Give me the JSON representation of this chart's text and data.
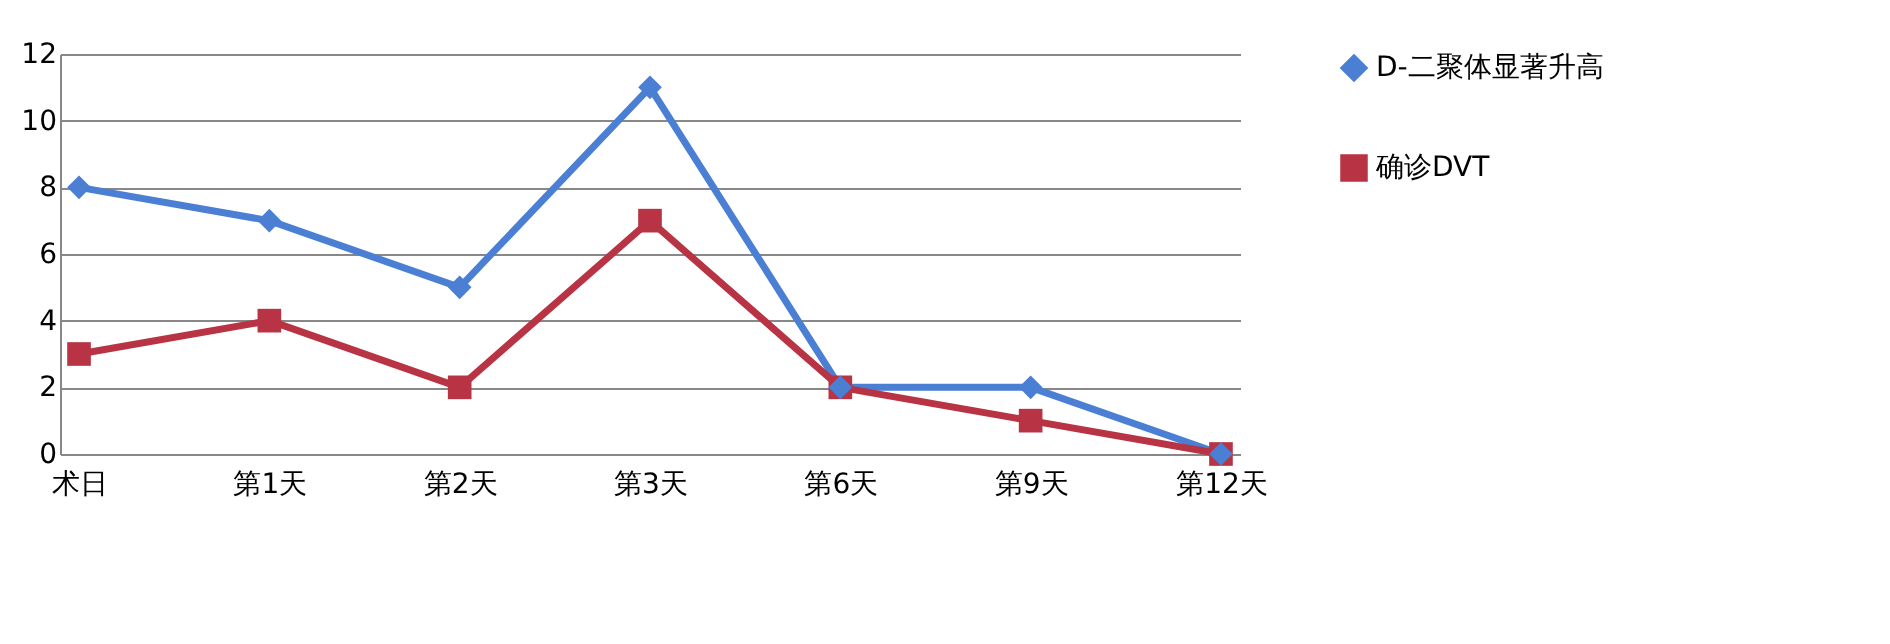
{
  "chart_data": {
    "type": "line",
    "categories": [
      "术日",
      "第1天",
      "第2天",
      "第3天",
      "第6天",
      "第9天",
      "第12天"
    ],
    "series": [
      {
        "name": "D-二聚体显著升高",
        "color": "#4a7fd4",
        "marker": "diamond",
        "values": [
          8,
          7,
          5,
          11,
          2,
          2,
          0
        ]
      },
      {
        "name": "确诊DVT",
        "color": "#b83444",
        "marker": "square",
        "values": [
          3,
          4,
          2,
          7,
          2,
          1,
          0
        ]
      }
    ],
    "ylim": [
      0,
      12
    ],
    "yticks": [
      0,
      2,
      4,
      6,
      8,
      10,
      12
    ],
    "grid": "y",
    "legend": "right",
    "line_style": "solid"
  }
}
